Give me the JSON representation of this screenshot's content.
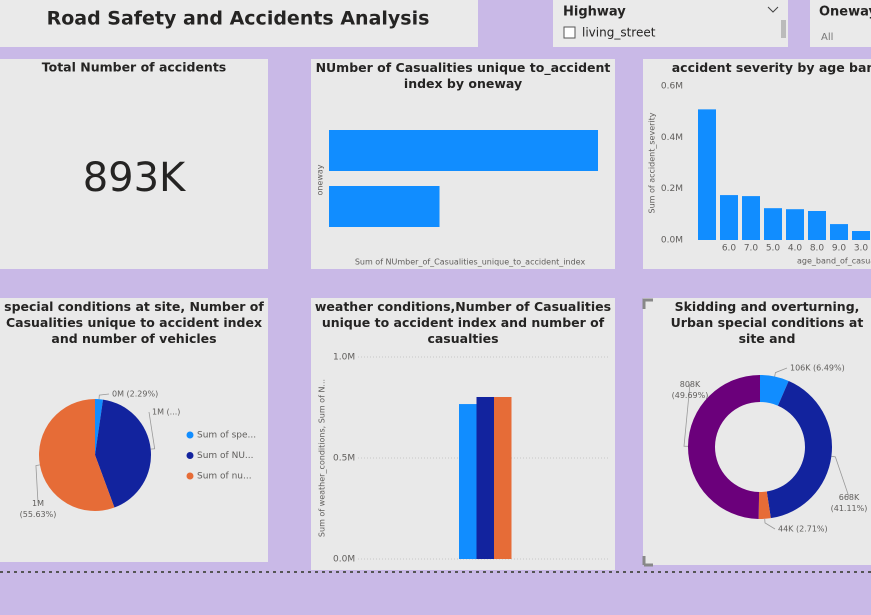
{
  "header": {
    "title": "Road Safety and Accidents Analysis"
  },
  "slicers": [
    {
      "title": "Highway",
      "item": "living_street"
    },
    {
      "title": "Oneway",
      "value": "All"
    }
  ],
  "card": {
    "title": "Total Number of accidents",
    "value": "893K"
  },
  "chart_data": [
    {
      "type": "hbar",
      "title": "NUmber of Casualities unique to_accident index by oneway",
      "y_label": "oneway",
      "x_label": "Sum of NUmber_of_Casualities_unique_to_accident_index",
      "categories": [
        null,
        null
      ],
      "values": [
        1200000,
        493000
      ],
      "color": "#118DFF"
    },
    {
      "type": "bar",
      "title": "accident severity by age band",
      "y_label": "Sum of accident_severity",
      "x_label": "age_band_of_casua",
      "categories": [
        null,
        "6.0",
        "7.0",
        "5.0",
        "4.0",
        "8.0",
        "9.0",
        "3.0"
      ],
      "values": [
        509000,
        175000,
        171000,
        124000,
        120000,
        113000,
        62000,
        35000
      ],
      "color": "#118DFF",
      "ylim": [
        0,
        600000
      ],
      "yticks": [
        {
          "value": 0,
          "label": "0.0M"
        },
        {
          "value": 200000,
          "label": "0.2M"
        },
        {
          "value": 400000,
          "label": "0.4M"
        },
        {
          "value": 600000,
          "label": "0.6M"
        }
      ]
    },
    {
      "type": "pie",
      "title": "special conditions at site, Number of Casualities unique to accident index and number of vehicles",
      "categories": [
        "Sum of spe...",
        "Sum of NU...",
        "Sum of nu..."
      ],
      "values": [
        2.29,
        42.08,
        55.63
      ],
      "value_labels": [
        "0M (2.29%)",
        "1M (...)",
        "1M (55.63%)"
      ],
      "colors": [
        "#118DFF",
        "#12239E",
        "#E66C37"
      ]
    },
    {
      "type": "grouped-bar",
      "title": "weather conditions,Number of Casualities unique to accident index and number of casualties",
      "y_label": "Sum of weather_conditions, Sum of N...",
      "categories": [
        null
      ],
      "series": [
        {
          "color": "#118DFF",
          "values": [
            767000
          ]
        },
        {
          "color": "#12239E",
          "values": [
            802000
          ]
        },
        {
          "color": "#E66C37",
          "values": [
            802000
          ]
        }
      ],
      "ylim": [
        0,
        1000000
      ],
      "yticks": [
        {
          "value": 0,
          "label": "0.0M"
        },
        {
          "value": 500000,
          "label": "0.5M"
        },
        {
          "value": 1000000,
          "label": "1.0M"
        }
      ],
      "grid": true
    },
    {
      "type": "donut",
      "title": "Skidding and overturning, Urban special conditions at site and",
      "values": [
        106000,
        668000,
        44000,
        808000
      ],
      "value_labels": [
        "106K (6.49%)",
        "668K (41.11%)",
        "44K (2.71%)",
        "808K (49.69%)"
      ],
      "colors": [
        "#118DFF",
        "#12239E",
        "#E66C37",
        "#6B007B"
      ]
    }
  ]
}
